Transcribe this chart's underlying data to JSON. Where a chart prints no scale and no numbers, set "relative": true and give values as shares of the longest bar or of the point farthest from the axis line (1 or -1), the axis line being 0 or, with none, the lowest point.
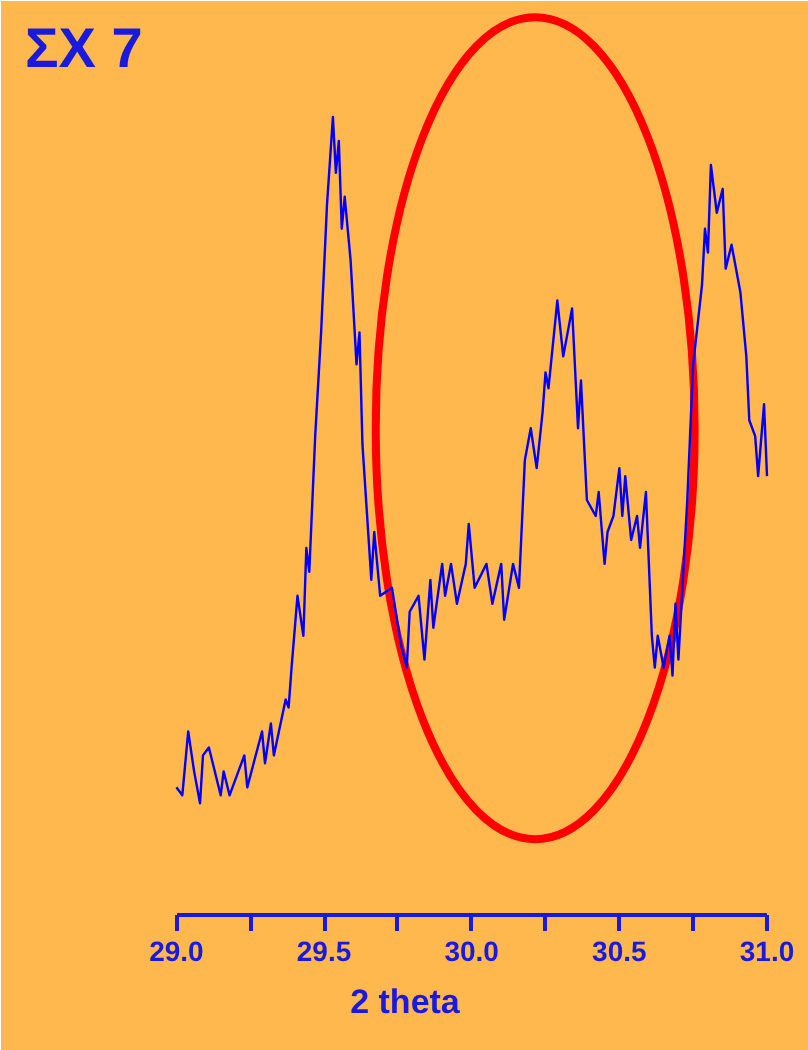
{
  "chart_data": {
    "type": "line",
    "title": "ΣX 7",
    "xlabel": "2 theta",
    "relative": true,
    "color": "#0000ff",
    "xlim": [
      29.0,
      31.0
    ],
    "xticks": [
      {
        "value": 29.0,
        "label": "29.0"
      },
      {
        "value": 29.25,
        "label": null
      },
      {
        "value": 29.5,
        "label": "29.5"
      },
      {
        "value": 29.75,
        "label": null
      },
      {
        "value": 30.0,
        "label": "30.0"
      },
      {
        "value": 30.25,
        "label": null
      },
      {
        "value": 30.5,
        "label": "30.5"
      },
      {
        "value": 30.75,
        "label": null
      },
      {
        "value": 31.0,
        "label": "31.0"
      }
    ],
    "x": [
      29.0,
      29.02,
      29.04,
      29.06,
      29.08,
      29.09,
      29.11,
      29.15,
      29.16,
      29.18,
      29.21,
      29.23,
      29.24,
      29.29,
      29.3,
      29.32,
      29.33,
      29.37,
      29.38,
      29.39,
      29.41,
      29.43,
      29.44,
      29.45,
      29.47,
      29.49,
      29.51,
      29.53,
      29.54,
      29.55,
      29.56,
      29.57,
      29.59,
      29.61,
      29.62,
      29.63,
      29.66,
      29.67,
      29.69,
      29.73,
      29.76,
      29.78,
      29.79,
      29.82,
      29.84,
      29.86,
      29.87,
      29.9,
      29.91,
      29.93,
      29.95,
      29.98,
      29.99,
      30.01,
      30.05,
      30.07,
      30.1,
      30.11,
      30.14,
      30.16,
      30.18,
      30.2,
      30.22,
      30.24,
      30.25,
      30.26,
      30.29,
      30.31,
      30.34,
      30.36,
      30.37,
      30.39,
      30.42,
      30.43,
      30.45,
      30.46,
      30.48,
      30.5,
      30.51,
      30.52,
      30.54,
      30.56,
      30.57,
      30.59,
      30.61,
      30.62,
      30.63,
      30.65,
      30.67,
      30.68,
      30.69,
      30.7,
      30.73,
      30.75,
      30.78,
      30.79,
      30.8,
      30.81,
      30.83,
      30.85,
      30.86,
      30.88,
      30.91,
      30.93,
      30.94,
      30.96,
      30.97,
      30.99,
      31.0
    ],
    "values": [
      0.16,
      0.15,
      0.23,
      0.18,
      0.14,
      0.2,
      0.21,
      0.15,
      0.18,
      0.15,
      0.18,
      0.2,
      0.16,
      0.23,
      0.19,
      0.24,
      0.2,
      0.27,
      0.26,
      0.31,
      0.4,
      0.35,
      0.46,
      0.43,
      0.6,
      0.73,
      0.89,
      1.0,
      0.93,
      0.97,
      0.86,
      0.9,
      0.82,
      0.69,
      0.73,
      0.59,
      0.42,
      0.48,
      0.4,
      0.41,
      0.34,
      0.31,
      0.38,
      0.4,
      0.32,
      0.42,
      0.36,
      0.44,
      0.4,
      0.44,
      0.39,
      0.44,
      0.49,
      0.41,
      0.44,
      0.39,
      0.44,
      0.37,
      0.44,
      0.41,
      0.57,
      0.61,
      0.56,
      0.63,
      0.68,
      0.66,
      0.77,
      0.7,
      0.76,
      0.61,
      0.67,
      0.52,
      0.5,
      0.53,
      0.44,
      0.48,
      0.5,
      0.56,
      0.5,
      0.55,
      0.47,
      0.5,
      0.46,
      0.53,
      0.35,
      0.31,
      0.35,
      0.31,
      0.35,
      0.3,
      0.39,
      0.32,
      0.52,
      0.69,
      0.79,
      0.86,
      0.83,
      0.94,
      0.88,
      0.91,
      0.81,
      0.84,
      0.78,
      0.7,
      0.62,
      0.6,
      0.55,
      0.64,
      0.55
    ]
  }
}
